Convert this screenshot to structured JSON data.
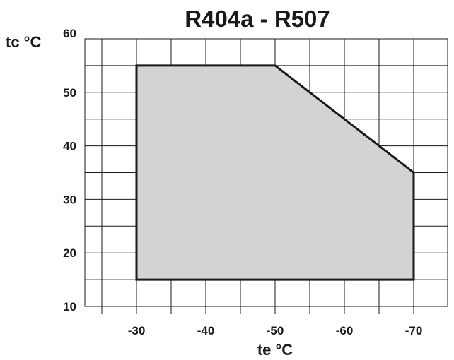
{
  "chart_data": {
    "type": "area",
    "title": "R404a - R507",
    "xlabel": "te °C",
    "ylabel": "tc °C",
    "x_ticks": [
      -30,
      -40,
      -50,
      -60,
      -70
    ],
    "y_ticks": [
      10,
      20,
      30,
      40,
      50,
      60
    ],
    "xlim": [
      -25,
      -75
    ],
    "ylim": [
      10,
      60
    ],
    "grid": true,
    "envelope": {
      "name": "",
      "points": [
        {
          "x": -30,
          "y": 15
        },
        {
          "x": -30,
          "y": 55
        },
        {
          "x": -50,
          "y": 55
        },
        {
          "x": -70,
          "y": 35
        },
        {
          "x": -70,
          "y": 15
        }
      ]
    },
    "colors": {
      "fill": "#d2d3d5",
      "outline": "#1a1a1a",
      "grid": "#1a1a1a"
    }
  }
}
